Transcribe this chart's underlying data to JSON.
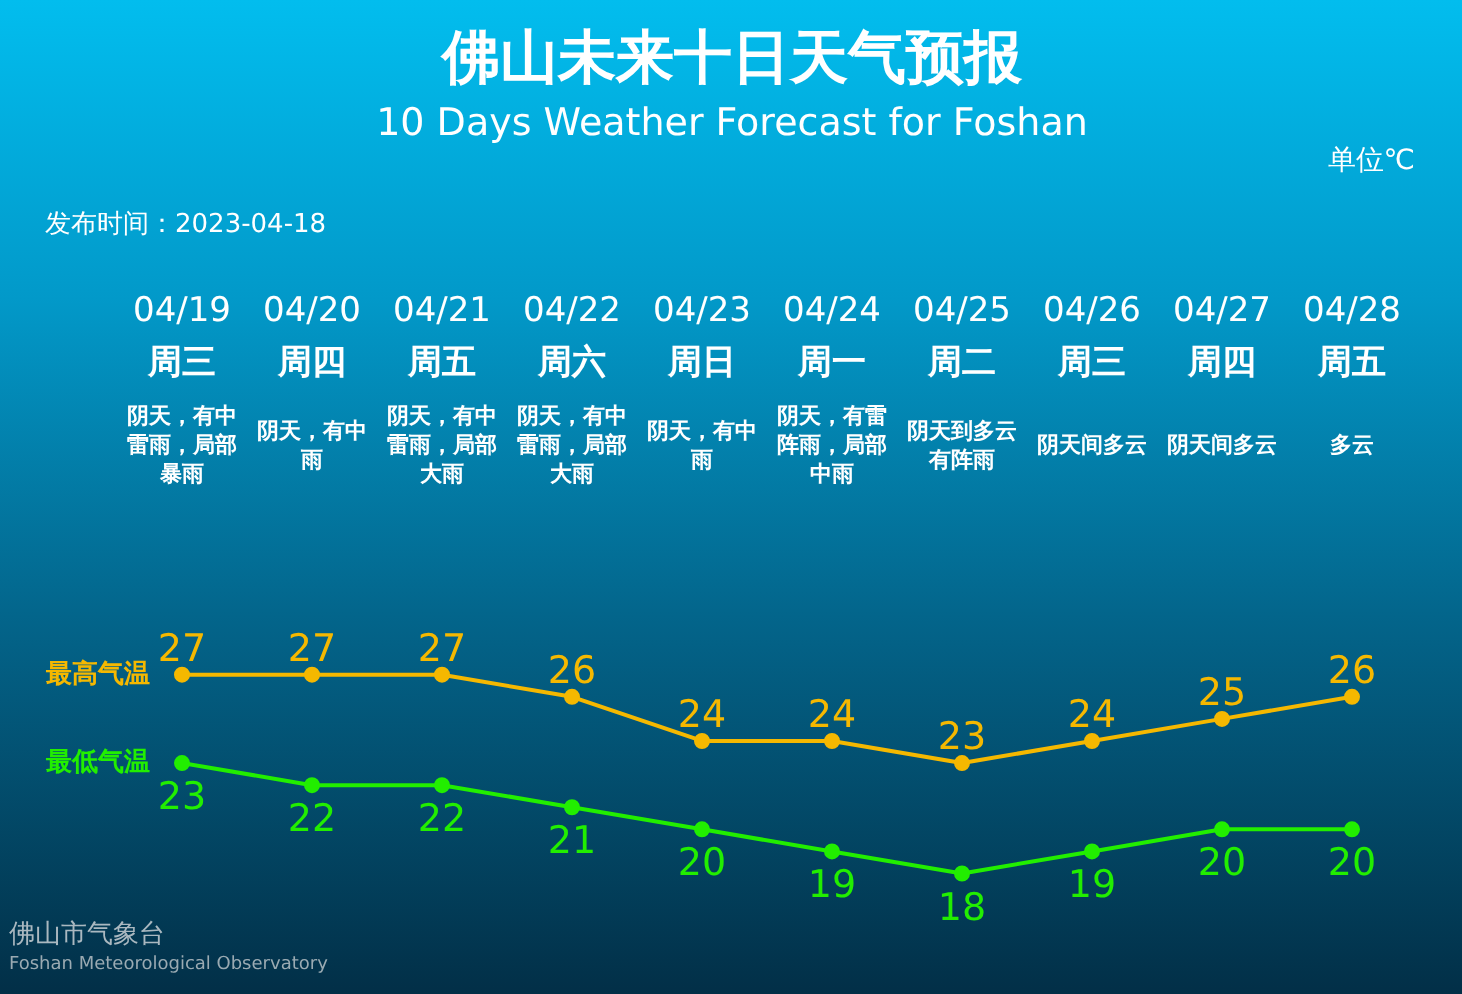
{
  "chart_data": {
    "type": "line",
    "title": "佛山未来十日天气预报",
    "subtitle": "10 Days Weather Forecast for Foshan",
    "categories": [
      "04/19\n周三",
      "04/20\n周四",
      "04/21\n周五",
      "04/22\n周六",
      "04/23\n周日",
      "04/24\n周一",
      "04/25\n周二",
      "04/26\n周三",
      "04/27\n周四",
      "04/28\n周五"
    ],
    "series": [
      {
        "name": "最高气温",
        "color": "#f5b800",
        "values": [
          27,
          27,
          27,
          26,
          24,
          24,
          23,
          24,
          25,
          26
        ]
      },
      {
        "name": "最低气温",
        "color": "#22ee00",
        "values": [
          23,
          22,
          22,
          21,
          20,
          19,
          18,
          19,
          20,
          20
        ]
      }
    ],
    "ylim": [
      12.5,
      57.5
    ],
    "data_labels": true,
    "marker": "circle",
    "line_style": "solid",
    "tick_labels": "x",
    "annotations": [
      "单位℃",
      "发布时间：2023-04-18",
      "佛山市气象台",
      "Foshan Meteorological Observatory",
      "阴天，有中雷雨，局部暴雨",
      "阴天，有中雨",
      "阴天，有中雷雨，局部大雨",
      "阴天，有中雷雨，局部大雨",
      "阴天，有中雨",
      "阴天，有雷阵雨，局部中雨",
      "阴天到多云有阵雨",
      "阴天间多云",
      "阴天间多云",
      "多云"
    ]
  }
}
